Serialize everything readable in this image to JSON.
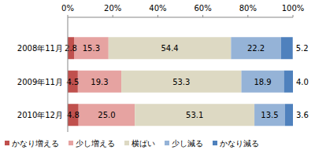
{
  "chart_data": {
    "type": "bar",
    "orientation": "horizontal",
    "stacked": true,
    "data_labels": true,
    "grid": false,
    "legend": "bottom",
    "categories": [
      "2008年11月",
      "2009年11月",
      "2010年12月"
    ],
    "series": [
      {
        "name": "かなり増える",
        "color": "#c0504d",
        "values": [
          2.8,
          4.5,
          4.8
        ],
        "value_labels": [
          "2.8",
          "4.5",
          "4.8"
        ]
      },
      {
        "name": "少し増える",
        "color": "#e6a3a1",
        "values": [
          15.3,
          19.3,
          25.0
        ],
        "value_labels": [
          "15.3",
          "19.3",
          "25.0"
        ]
      },
      {
        "name": "横ばい",
        "color": "#ddd9c3",
        "values": [
          54.4,
          53.3,
          53.1
        ],
        "value_labels": [
          "54.4",
          "53.3",
          "53.1"
        ]
      },
      {
        "name": "少し減る",
        "color": "#95b3d7",
        "values": [
          22.2,
          18.9,
          13.5
        ],
        "value_labels": [
          "22.2",
          "18.9",
          "13.5"
        ]
      },
      {
        "name": "かなり減る",
        "color": "#4f81bd",
        "values": [
          5.2,
          4.0,
          3.6
        ],
        "value_labels": [
          "5.2",
          "4.0",
          "3.6"
        ]
      }
    ],
    "xlim": [
      0,
      100
    ],
    "xticks": [
      {
        "value": 0,
        "label": "0%"
      },
      {
        "value": 20,
        "label": "20%"
      },
      {
        "value": 40,
        "label": "40%"
      },
      {
        "value": 60,
        "label": "60%"
      },
      {
        "value": 80,
        "label": "80%"
      },
      {
        "value": 100,
        "label": "100%"
      }
    ]
  }
}
